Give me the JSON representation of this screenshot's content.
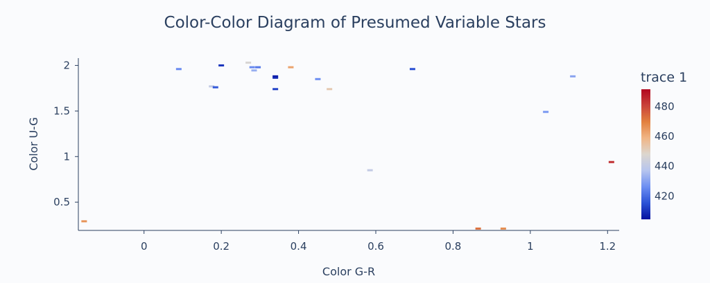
{
  "chart_data": {
    "type": "scatter",
    "title": "Color-Color Diagram of Presumed Variable Stars",
    "xlabel": "Color G-R",
    "ylabel": "Color U-G",
    "xlim": [
      -0.17,
      1.23
    ],
    "ylim": [
      0.19,
      2.08
    ],
    "x_ticks": [
      0,
      0.2,
      0.4,
      0.6,
      0.8,
      1,
      1.2
    ],
    "x_tick_labels": [
      "0",
      "0.2",
      "0.4",
      "0.6",
      "0.8",
      "1",
      "1.2"
    ],
    "y_ticks": [
      0.5,
      1,
      1.5,
      2
    ],
    "y_tick_labels": [
      "0.5",
      "1",
      "1.5",
      "2"
    ],
    "grid": false,
    "marker": "short horizontal dash",
    "colorbar": {
      "title": "trace 1",
      "range": [
        404,
        491
      ],
      "tick_values": [
        420,
        440,
        460,
        480
      ],
      "tick_labels": [
        "420",
        "440",
        "460",
        "480"
      ],
      "colorscale": [
        "#05109f",
        "#2b52d6",
        "#6c8ef2",
        "#b6c5ee",
        "#dcd6cf",
        "#f0b585",
        "#e2803e",
        "#c9423a",
        "#b1081f"
      ]
    },
    "points": [
      {
        "x": -0.155,
        "y": 0.29,
        "c": 465
      },
      {
        "x": 0.09,
        "y": 1.96,
        "c": 425
      },
      {
        "x": 0.175,
        "y": 1.77,
        "c": 440
      },
      {
        "x": 0.185,
        "y": 1.76,
        "c": 416
      },
      {
        "x": 0.2,
        "y": 2.0,
        "c": 410
      },
      {
        "x": 0.27,
        "y": 2.03,
        "c": 446
      },
      {
        "x": 0.28,
        "y": 1.98,
        "c": 425
      },
      {
        "x": 0.285,
        "y": 1.945,
        "c": 432
      },
      {
        "x": 0.295,
        "y": 1.98,
        "c": 422
      },
      {
        "x": 0.34,
        "y": 1.88,
        "c": 406
      },
      {
        "x": 0.34,
        "y": 1.865,
        "c": 408
      },
      {
        "x": 0.34,
        "y": 1.74,
        "c": 412
      },
      {
        "x": 0.38,
        "y": 1.98,
        "c": 462
      },
      {
        "x": 0.45,
        "y": 1.85,
        "c": 426
      },
      {
        "x": 0.48,
        "y": 1.74,
        "c": 452
      },
      {
        "x": 0.585,
        "y": 0.85,
        "c": 440
      },
      {
        "x": 0.695,
        "y": 1.96,
        "c": 414
      },
      {
        "x": 0.865,
        "y": 0.21,
        "c": 472
      },
      {
        "x": 0.93,
        "y": 0.21,
        "c": 467
      },
      {
        "x": 1.04,
        "y": 1.49,
        "c": 428
      },
      {
        "x": 1.11,
        "y": 1.88,
        "c": 430
      },
      {
        "x": 1.21,
        "y": 0.94,
        "c": 484
      }
    ]
  }
}
